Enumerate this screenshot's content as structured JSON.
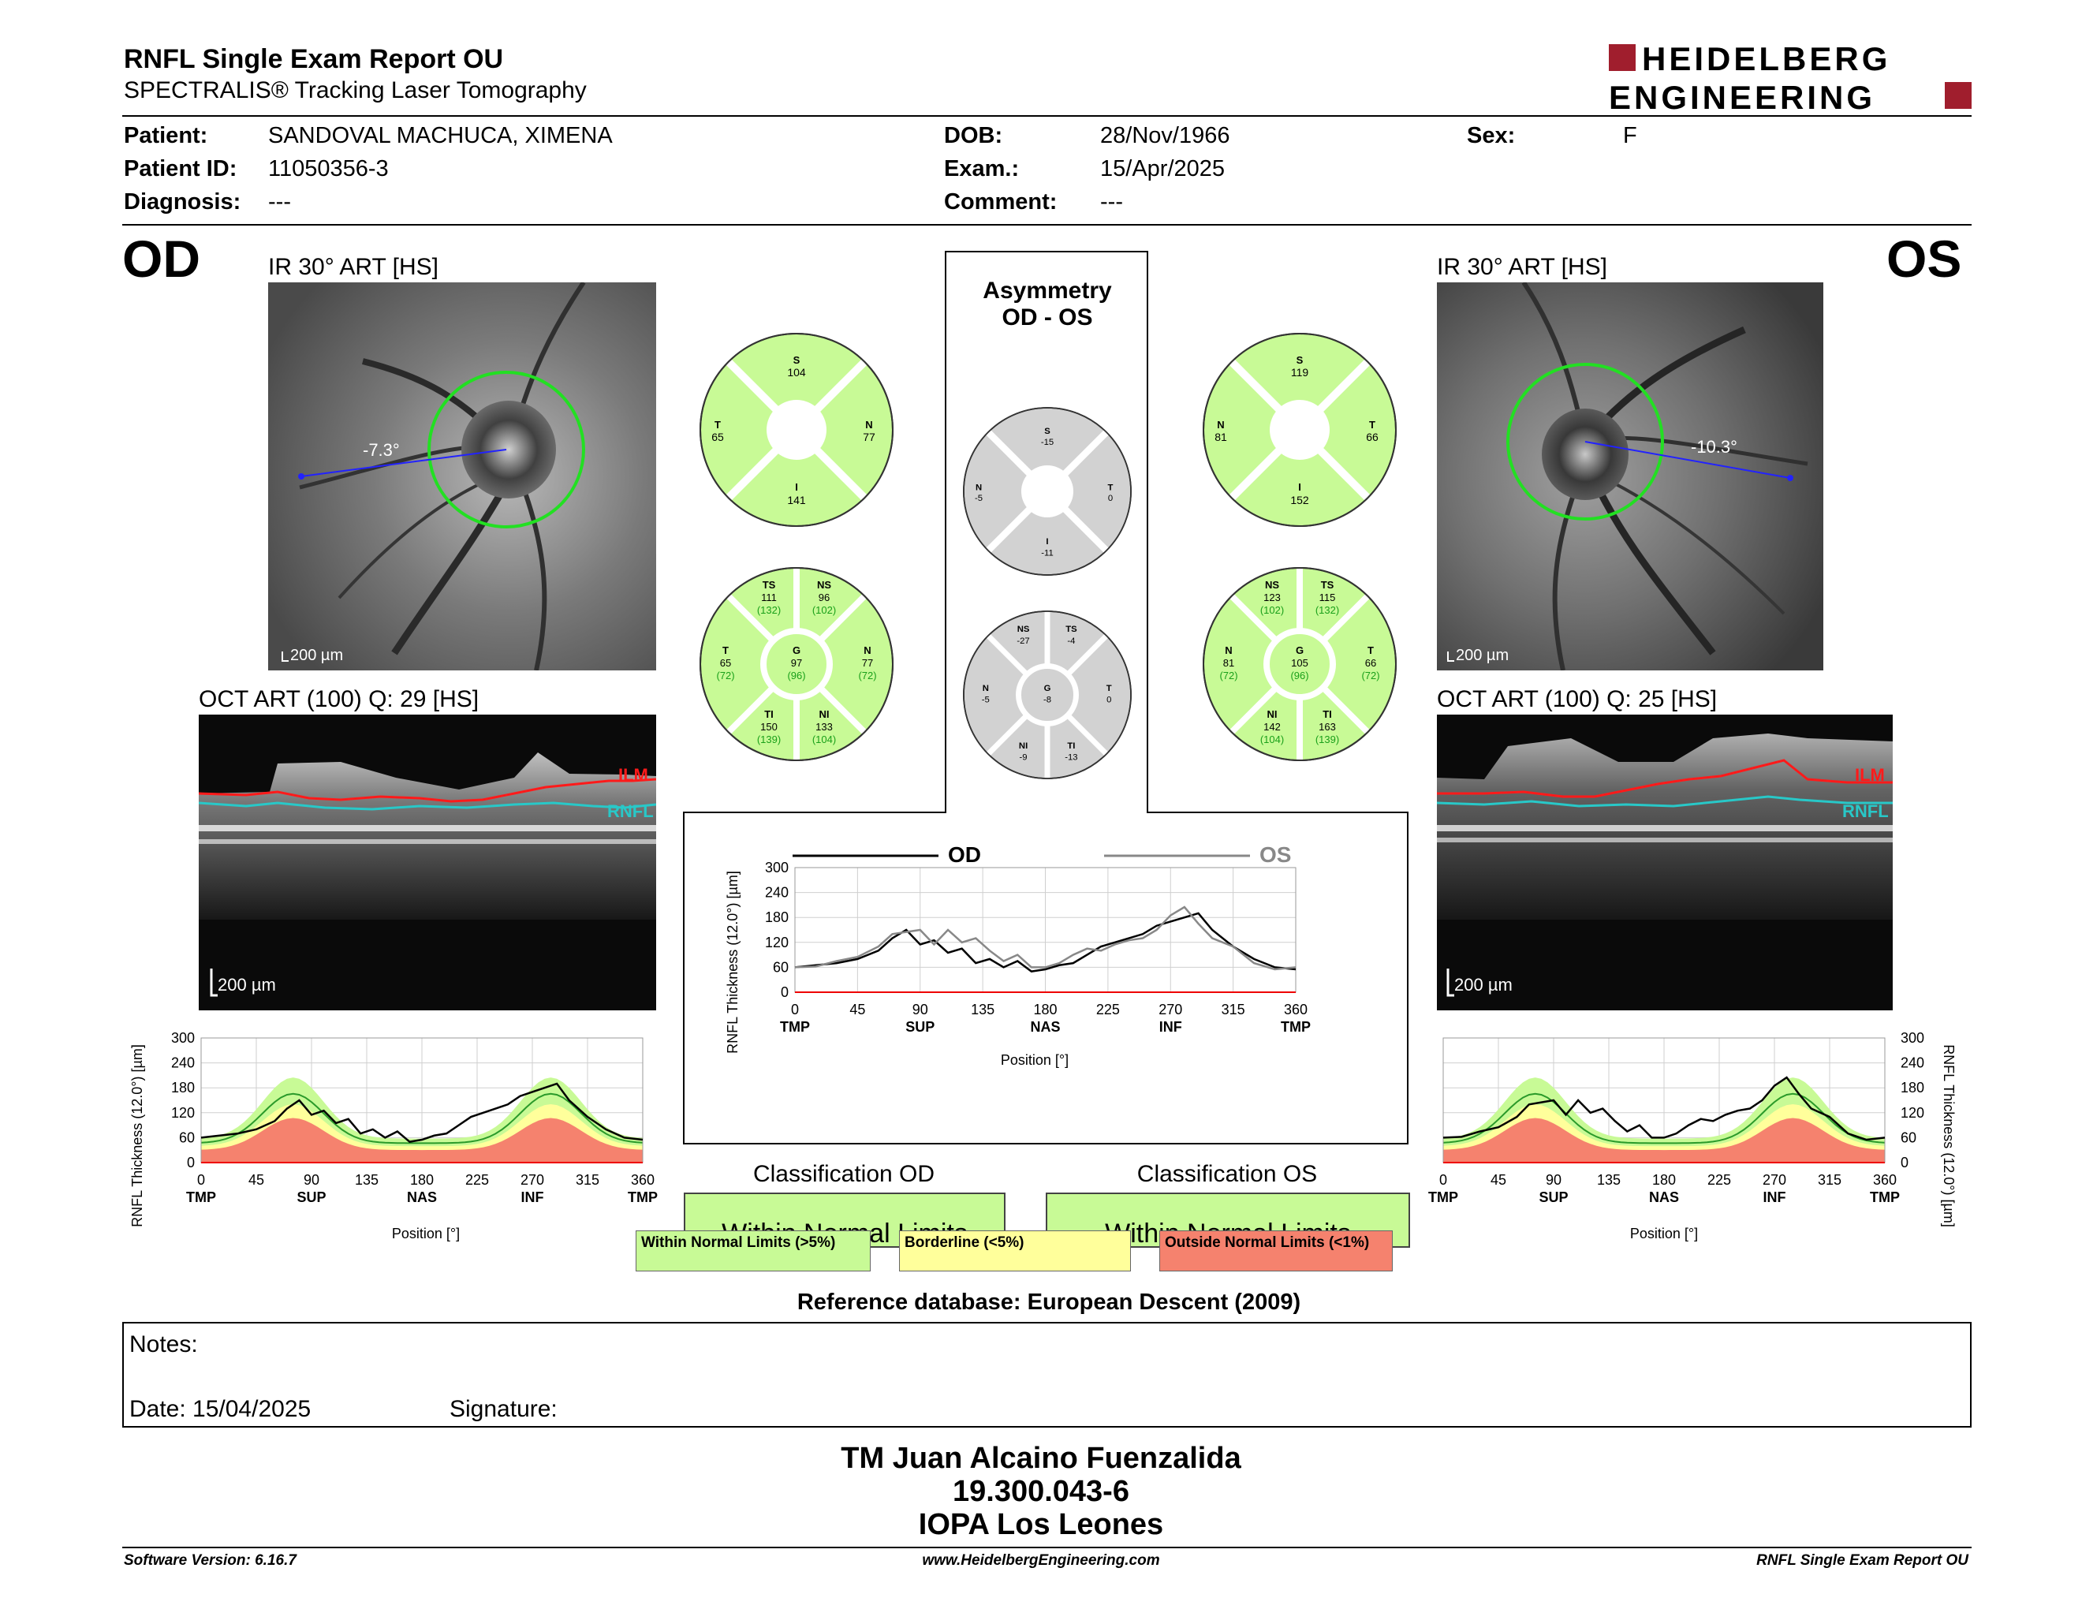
{
  "header": {
    "title": "RNFL Single Exam Report OU",
    "subtitle": "SPECTRALIS® Tracking Laser Tomography",
    "logo_line1": "HEIDELBERG",
    "logo_line2": "ENGINEERING"
  },
  "patient": {
    "patient_label": "Patient:",
    "patient_value": "SANDOVAL MACHUCA, XIMENA",
    "id_label": "Patient ID:",
    "id_value": "11050356-3",
    "diag_label": "Diagnosis:",
    "diag_value": "---",
    "dob_label": "DOB:",
    "dob_value": "28/Nov/1966",
    "exam_label": "Exam.:",
    "exam_value": "15/Apr/2025",
    "comment_label": "Comment:",
    "comment_value": "---",
    "sex_label": "Sex:",
    "sex_value": "F"
  },
  "od": {
    "eye": "OD",
    "ir_caption": "IR 30° ART [HS]",
    "angle": "-7.3°",
    "scale": "200 µm",
    "oct_caption": "OCT ART (100) Q: 29 [HS]",
    "oct_scale": "200 µm",
    "ilm": "ILM",
    "rnfl": "RNFL",
    "quad": {
      "S": "104",
      "N": "77",
      "I": "141",
      "T": "65"
    },
    "sect": {
      "TS": "111",
      "TS_ref": "(132)",
      "NS": "96",
      "NS_ref": "(102)",
      "T": "65",
      "T_ref": "(72)",
      "G": "97",
      "G_ref": "(96)",
      "N": "77",
      "N_ref": "(72)",
      "TI": "150",
      "TI_ref": "(139)",
      "NI": "133",
      "NI_ref": "(104)"
    },
    "classification_title": "Classification OD",
    "classification": "Within Normal Limits"
  },
  "os": {
    "eye": "OS",
    "ir_caption": "IR 30° ART [HS]",
    "angle": "-10.3°",
    "scale": "200 µm",
    "oct_caption": "OCT ART (100) Q: 25 [HS]",
    "oct_scale": "200 µm",
    "ilm": "ILM",
    "rnfl": "RNFL",
    "quad": {
      "S": "119",
      "N": "81",
      "I": "152",
      "T": "66"
    },
    "sect": {
      "NS": "123",
      "NS_ref": "(102)",
      "TS": "115",
      "TS_ref": "(132)",
      "N": "81",
      "N_ref": "(72)",
      "G": "105",
      "G_ref": "(96)",
      "T": "66",
      "T_ref": "(72)",
      "NI": "142",
      "NI_ref": "(104)",
      "TI": "163",
      "TI_ref": "(139)"
    },
    "classification_title": "Classification OS",
    "classification": "Within Normal Limits"
  },
  "asym": {
    "title1": "Asymmetry",
    "title2": "OD - OS",
    "quad": {
      "S": "-15",
      "N": "-5",
      "I": "-11",
      "T": "0"
    },
    "sect": {
      "NS": "-27",
      "TS": "-4",
      "N": "-5",
      "G": "-8",
      "T": "0",
      "NI": "-9",
      "TI": "-13"
    }
  },
  "chart_axes": {
    "ylabel": "RNFL Thickness (12.0°) [µm]",
    "xlabel": "Position [°]",
    "yticks": [
      "0",
      "60",
      "120",
      "180",
      "240",
      "300"
    ],
    "xticks": [
      "0",
      "45",
      "90",
      "135",
      "180",
      "225",
      "270",
      "315",
      "360"
    ],
    "od_regions": [
      "TMP",
      "SUP",
      "NAS",
      "INF",
      "TMP"
    ],
    "os_regions": [
      "TMP",
      "SUP",
      "NAS",
      "INF",
      "TMP"
    ],
    "legend_od": "OD",
    "legend_os": "OS"
  },
  "legend": {
    "wnl": "Within Normal Limits (>5%)",
    "bl": "Borderline (<5%)",
    "onl": "Outside Normal Limits (<1%)"
  },
  "reference": "Reference database: European Descent (2009)",
  "notes": {
    "label": "Notes:",
    "date": "Date: 15/04/2025",
    "signature": "Signature:"
  },
  "signature_block": {
    "line1": "TM Juan Alcaino Fuenzalida",
    "line2": "19.300.043-6",
    "line3": "IOPA Los Leones"
  },
  "footer": {
    "left": "Software Version: 6.16.7",
    "center": "www.HeidelbergEngineering.com",
    "right": "RNFL Single Exam Report OU"
  },
  "colors": {
    "green": "#c8fa96",
    "yellow": "#ffff9b",
    "red": "#f5826e",
    "gray": "#d2d2d2",
    "brand": "#a01e2d"
  },
  "chart_data": [
    {
      "type": "line",
      "title": "OD",
      "xlabel": "Position [°]",
      "ylabel": "RNFL Thickness (12.0°) [µm]",
      "xlim": [
        0,
        360
      ],
      "ylim": [
        0,
        300
      ],
      "series": [
        {
          "name": "OD",
          "x": [
            0,
            15,
            30,
            45,
            60,
            70,
            80,
            90,
            100,
            110,
            120,
            130,
            140,
            150,
            160,
            170,
            180,
            190,
            200,
            210,
            220,
            230,
            240,
            250,
            260,
            270,
            280,
            290,
            300,
            315,
            330,
            345,
            360
          ],
          "values": [
            60,
            65,
            70,
            80,
            100,
            130,
            150,
            115,
            125,
            95,
            105,
            70,
            80,
            60,
            75,
            50,
            55,
            65,
            70,
            90,
            110,
            120,
            130,
            140,
            160,
            170,
            180,
            190,
            150,
            110,
            80,
            60,
            55
          ]
        }
      ]
    },
    {
      "type": "line",
      "title": "",
      "xlabel": "Position [°]",
      "ylabel": "RNFL Thickness (12.0°) [µm]",
      "xlim": [
        0,
        360
      ],
      "ylim": [
        0,
        300
      ],
      "series": [
        {
          "name": "OD",
          "x": [
            0,
            15,
            30,
            45,
            60,
            70,
            80,
            90,
            100,
            110,
            120,
            130,
            140,
            150,
            160,
            170,
            180,
            190,
            200,
            210,
            220,
            230,
            240,
            250,
            260,
            270,
            280,
            290,
            300,
            315,
            330,
            345,
            360
          ],
          "values": [
            60,
            65,
            70,
            80,
            100,
            130,
            150,
            115,
            125,
            95,
            105,
            70,
            80,
            60,
            75,
            50,
            55,
            65,
            70,
            90,
            110,
            120,
            130,
            140,
            160,
            170,
            180,
            190,
            150,
            110,
            80,
            60,
            55
          ]
        },
        {
          "name": "OS",
          "x": [
            0,
            15,
            30,
            45,
            60,
            70,
            80,
            90,
            100,
            110,
            120,
            130,
            140,
            150,
            160,
            170,
            180,
            190,
            200,
            210,
            220,
            230,
            240,
            250,
            260,
            270,
            280,
            290,
            300,
            315,
            330,
            345,
            360
          ],
          "values": [
            60,
            62,
            75,
            85,
            110,
            140,
            145,
            150,
            115,
            150,
            120,
            130,
            100,
            75,
            90,
            60,
            60,
            70,
            90,
            105,
            100,
            115,
            125,
            130,
            150,
            185,
            205,
            165,
            130,
            110,
            70,
            55,
            60
          ]
        }
      ]
    },
    {
      "type": "line",
      "title": "OS",
      "xlabel": "Position [°]",
      "ylabel": "RNFL Thickness (12.0°) [µm]",
      "xlim": [
        0,
        360
      ],
      "ylim": [
        0,
        300
      ],
      "series": [
        {
          "name": "OS",
          "x": [
            0,
            15,
            30,
            45,
            60,
            70,
            80,
            90,
            100,
            110,
            120,
            130,
            140,
            150,
            160,
            170,
            180,
            190,
            200,
            210,
            220,
            230,
            240,
            250,
            260,
            270,
            280,
            290,
            300,
            315,
            330,
            345,
            360
          ],
          "values": [
            60,
            62,
            75,
            85,
            110,
            140,
            145,
            150,
            115,
            150,
            120,
            130,
            100,
            75,
            90,
            60,
            60,
            70,
            90,
            105,
            100,
            115,
            125,
            130,
            150,
            185,
            205,
            165,
            130,
            110,
            70,
            55,
            60
          ]
        }
      ]
    }
  ]
}
